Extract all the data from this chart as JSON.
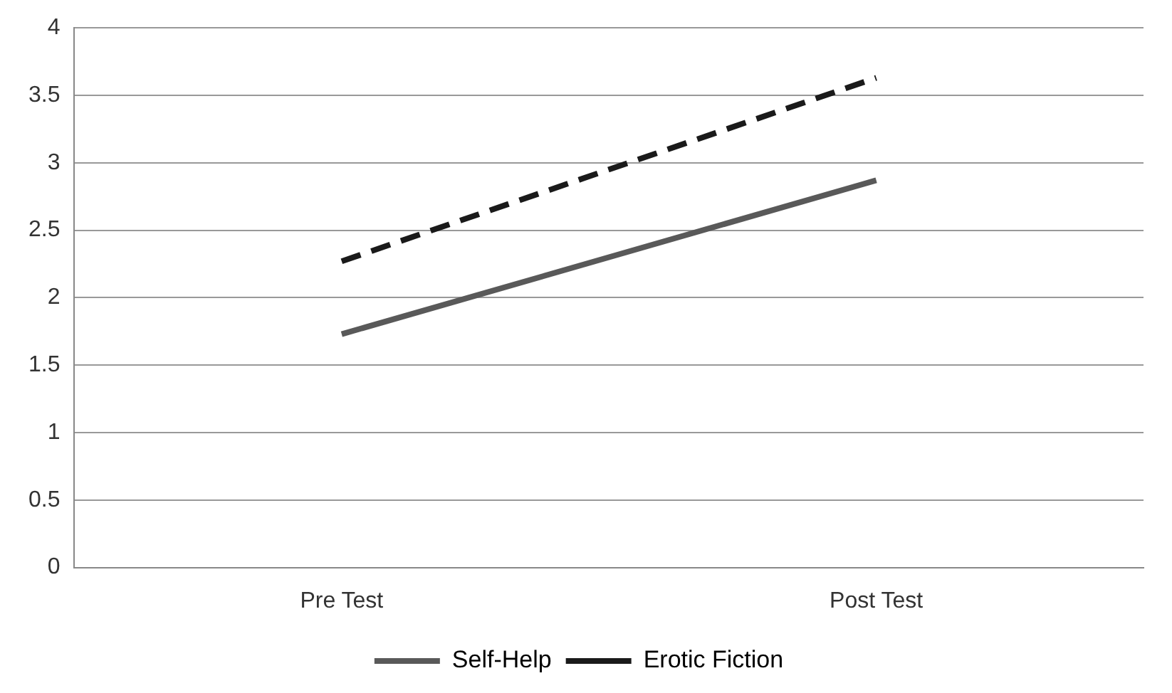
{
  "chart_data": {
    "type": "line",
    "categories": [
      "Pre Test",
      "Post Test"
    ],
    "series": [
      {
        "name": "Self-Help",
        "color": "#595959",
        "values": [
          1.73,
          2.87
        ],
        "line_style": "solid"
      },
      {
        "name": "Erotic Fiction",
        "color": "#1a1a1a",
        "values": [
          2.27,
          3.63
        ],
        "line_style": "dashed"
      }
    ],
    "ylim": [
      0,
      4
    ],
    "yticks": [
      0,
      {
        "value": 0.5,
        "label": "0.5"
      },
      1,
      {
        "value": 1.5,
        "label": "1.5"
      },
      2,
      {
        "value": 2.5,
        "label": "2.5"
      },
      3,
      {
        "value": 3.5,
        "label": "3.5"
      },
      4
    ],
    "grid": "y",
    "legend": "bottom",
    "marker": "none"
  }
}
